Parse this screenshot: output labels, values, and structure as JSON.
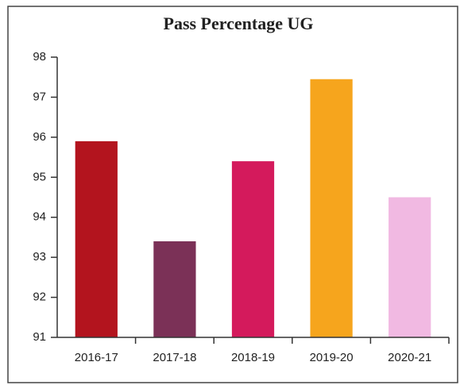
{
  "chart_data": {
    "type": "bar",
    "title": "Pass Percentage UG",
    "categories": [
      "2016-17",
      "2017-18",
      "2018-19",
      "2019-20",
      "2020-21"
    ],
    "values": [
      95.9,
      93.4,
      95.4,
      97.45,
      94.5
    ],
    "colors": [
      "#b3141e",
      "#7b3157",
      "#d41a5c",
      "#f6a51d",
      "#f1b9e2"
    ],
    "ylim": [
      91,
      98
    ],
    "yticks": [
      91,
      92,
      93,
      94,
      95,
      96,
      97,
      98
    ],
    "grid": false
  }
}
